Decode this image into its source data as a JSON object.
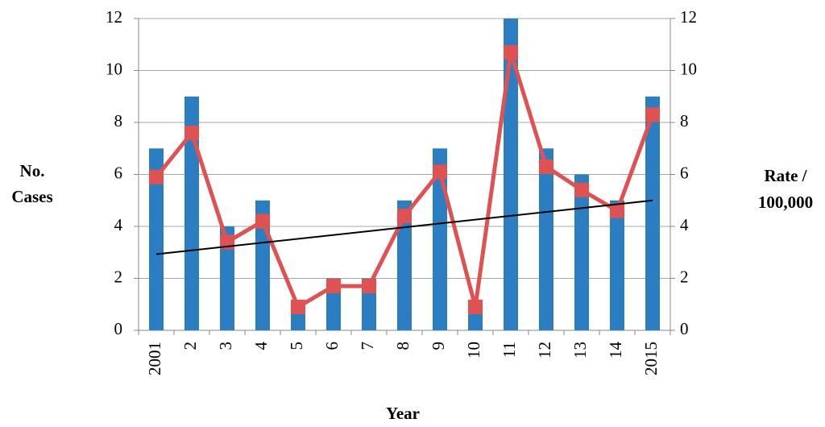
{
  "chart_data": {
    "type": "bar-line",
    "categories": [
      "2001",
      "2",
      "3",
      "4",
      "5",
      "6",
      "7",
      "8",
      "9",
      "10",
      "11",
      "12",
      "13",
      "14",
      "2015"
    ],
    "series": [
      {
        "type": "bar",
        "color": "#2b7ec1",
        "values": [
          7,
          9,
          4,
          5,
          1,
          2,
          2,
          5,
          7,
          1,
          12,
          7,
          6,
          5,
          9
        ]
      },
      {
        "type": "line",
        "color": "#e05252",
        "axis": "y2",
        "values": [
          5.9,
          7.6,
          3.4,
          4.2,
          0.9,
          1.7,
          1.7,
          4.4,
          6.1,
          0.9,
          10.7,
          6.3,
          5.4,
          4.6,
          8.3
        ]
      }
    ],
    "trendline": {
      "color": "#000000",
      "axis": "y2",
      "values": [
        2.93,
        5.0
      ]
    },
    "ylabel": [
      "No.",
      "Cases"
    ],
    "y2label": [
      "Rate /",
      "100,000"
    ],
    "xlabel": "Year",
    "ylim": [
      0,
      12
    ],
    "yticks": [
      0,
      2,
      4,
      6,
      8,
      10,
      12
    ],
    "y2lim": [
      0,
      12
    ],
    "y2ticks": [
      0,
      2,
      4,
      6,
      8,
      10,
      12
    ],
    "grid": true
  }
}
